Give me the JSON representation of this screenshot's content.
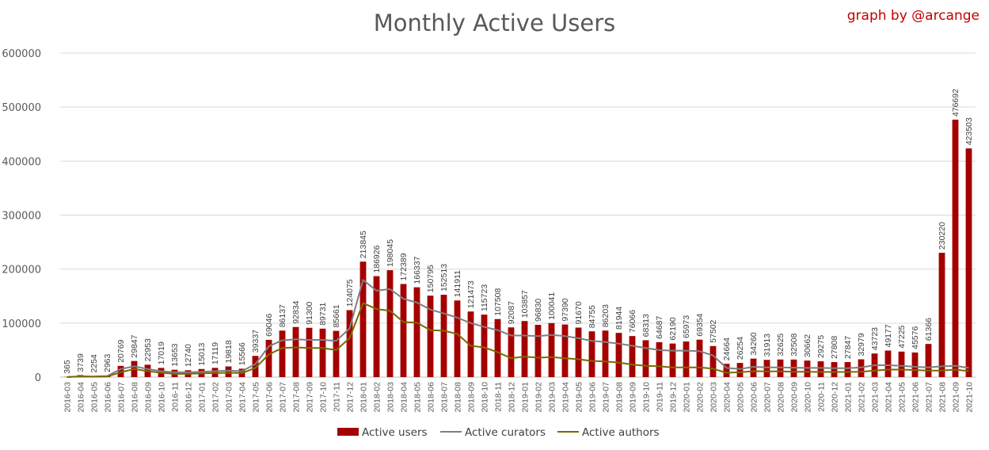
{
  "title": "Monthly Active Users",
  "credit": "graph by @arcange",
  "colors": {
    "users": "#a50000",
    "curators": "#7f7f7f",
    "authors": "#7a6a00",
    "grid": "#d9d9d9",
    "axis": "#bfbfbf"
  },
  "chart_data": {
    "type": "bar",
    "title": "Monthly Active Users",
    "xlabel": "",
    "ylabel": "",
    "ylim": [
      0,
      600000
    ],
    "yticks": [
      0,
      100000,
      200000,
      300000,
      400000,
      500000,
      600000
    ],
    "ytick_labels": [
      "0",
      "100000",
      "200000",
      "300000",
      "400000",
      "500000",
      "600000"
    ],
    "grid": true,
    "legend_position": "bottom",
    "categories": [
      "2016-03",
      "2016-04",
      "2016-05",
      "2016-06",
      "2016-07",
      "2016-08",
      "2016-09",
      "2016-10",
      "2016-11",
      "2016-12",
      "2017-01",
      "2017-02",
      "2017-03",
      "2017-04",
      "2017-05",
      "2017-06",
      "2017-07",
      "2017-08",
      "2017-09",
      "2017-10",
      "2017-11",
      "2017-12",
      "2018-01",
      "2018-02",
      "2018-03",
      "2018-04",
      "2018-05",
      "2018-06",
      "2018-07",
      "2018-08",
      "2018-09",
      "2018-10",
      "2018-11",
      "2018-12",
      "2019-01",
      "2019-02",
      "2019-03",
      "2019-04",
      "2019-05",
      "2019-06",
      "2019-07",
      "2019-08",
      "2019-09",
      "2019-10",
      "2019-11",
      "2019-12",
      "2020-01",
      "2020-02",
      "2020-03",
      "2020-04",
      "2020-05",
      "2020-06",
      "2020-07",
      "2020-08",
      "2020-09",
      "2020-10",
      "2020-11",
      "2020-12",
      "2021-01",
      "2021-02",
      "2021-03",
      "2021-04",
      "2021-05",
      "2021-06",
      "2021-07",
      "2021-08",
      "2021-09",
      "2021-10"
    ],
    "series": [
      {
        "name": "Active users",
        "kind": "bar",
        "values": [
          365,
          3739,
          2254,
          2963,
          20769,
          29847,
          22953,
          17019,
          13653,
          12740,
          15013,
          17119,
          19818,
          15566,
          39337,
          69046,
          86137,
          92834,
          91300,
          89731,
          85661,
          124075,
          213845,
          186926,
          198045,
          172389,
          166337,
          150795,
          152513,
          141911,
          121473,
          115723,
          107508,
          92087,
          103857,
          96830,
          100041,
          97390,
          91670,
          84755,
          86203,
          81944,
          76066,
          68313,
          64687,
          62190,
          65973,
          69354,
          57502,
          24664,
          26254,
          34260,
          31913,
          32625,
          32508,
          30662,
          29275,
          27808,
          27847,
          32979,
          43723,
          49177,
          47225,
          45576,
          61366,
          230220,
          476692,
          423503
        ]
      },
      {
        "name": "Active curators",
        "kind": "line",
        "values": [
          200,
          1500,
          1200,
          2000,
          15000,
          20000,
          15000,
          11000,
          9000,
          9000,
          10000,
          11000,
          12000,
          11000,
          24000,
          57000,
          68000,
          70000,
          69000,
          69000,
          67000,
          90000,
          180000,
          160000,
          163000,
          145000,
          138000,
          125000,
          118000,
          110000,
          100000,
          93000,
          87000,
          77000,
          77000,
          76000,
          78000,
          76000,
          72000,
          67000,
          65000,
          62000,
          58000,
          54000,
          50000,
          49000,
          49000,
          48000,
          40000,
          17000,
          15000,
          19000,
          18000,
          18000,
          17500,
          17000,
          17000,
          16500,
          16500,
          18000,
          22000,
          22000,
          21000,
          19000,
          18000,
          20000,
          21000,
          17000
        ]
      },
      {
        "name": "Active authors",
        "kind": "line",
        "values": [
          100,
          1000,
          800,
          1200,
          9000,
          15000,
          11000,
          8000,
          6000,
          6000,
          7000,
          7500,
          8000,
          7500,
          17000,
          42000,
          54000,
          55000,
          54000,
          54000,
          50000,
          72000,
          137000,
          126000,
          123000,
          102000,
          101000,
          87000,
          86000,
          80000,
          58000,
          55000,
          46000,
          35000,
          38000,
          36000,
          37000,
          35000,
          33000,
          30000,
          29000,
          27000,
          23000,
          21000,
          20000,
          18000,
          18000,
          18000,
          15500,
          8000,
          9000,
          11000,
          10500,
          10500,
          10000,
          10000,
          9500,
          9500,
          9500,
          10000,
          12000,
          14000,
          14000,
          13000,
          12000,
          12000,
          14000,
          11000
        ]
      }
    ]
  }
}
